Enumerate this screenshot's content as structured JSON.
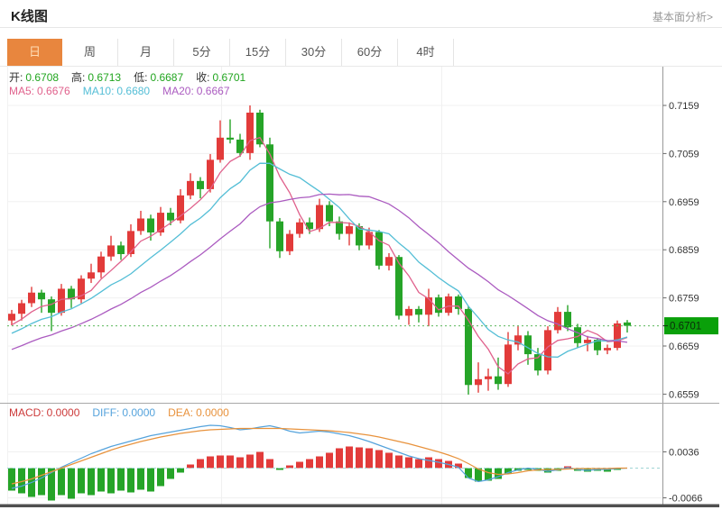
{
  "header": {
    "title": "K线图",
    "link": "基本面分析>"
  },
  "tabs": {
    "items": [
      {
        "label": "日",
        "active": true
      },
      {
        "label": "周",
        "active": false
      },
      {
        "label": "月",
        "active": false
      },
      {
        "label": "5分",
        "active": false
      },
      {
        "label": "15分",
        "active": false
      },
      {
        "label": "30分",
        "active": false
      },
      {
        "label": "60分",
        "active": false
      },
      {
        "label": "4时",
        "active": false
      }
    ]
  },
  "ohlc": {
    "open_label": "开:",
    "open": "0.6708",
    "high_label": "高:",
    "high": "0.6713",
    "low_label": "低:",
    "low": "0.6687",
    "close_label": "收:",
    "close": "0.6701"
  },
  "ma": {
    "ma5_label": "MA5:",
    "ma5": "0.6676",
    "ma10_label": "MA10:",
    "ma10": "0.6680",
    "ma20_label": "MA20:",
    "ma20": "0.6667"
  },
  "macd_row": {
    "macd_label": "MACD:",
    "macd": "0.0000",
    "diff_label": "DIFF:",
    "diff": "0.0000",
    "dea_label": "DEA:",
    "dea": "0.0000"
  },
  "colors": {
    "up": "#e23b3a",
    "down": "#26a428",
    "ma5": "#e0618c",
    "ma10": "#54bed6",
    "ma20": "#ab5bc0",
    "diff": "#55a3dc",
    "dea": "#e8923c",
    "price_line": "#5bb85b",
    "price_tag_bg": "#0aa00a",
    "price_tag_text": "#0b2b0b",
    "grid": "#f0f0f0",
    "axis": "#999999",
    "tick_text": "#333333",
    "macd_zero": "#9fd4d4",
    "separator": "#a8a8a8",
    "bottom_bar": "#505050",
    "accent_tab": "#e8863e"
  },
  "chart_data": {
    "type": "candlestick",
    "title": "K线图",
    "y_axis": {
      "labels": [
        "0.7159",
        "0.7059",
        "0.6959",
        "0.6859",
        "0.6759",
        "0.6659",
        "0.6559"
      ],
      "top_value": 0.7159,
      "step": 0.01
    },
    "current_price": {
      "label": "0.6701",
      "price": 0.6701
    },
    "candles": [
      [
        0.6712,
        0.6734,
        0.6702,
        0.6726
      ],
      [
        0.6726,
        0.6755,
        0.6712,
        0.6748
      ],
      [
        0.6748,
        0.6782,
        0.674,
        0.677
      ],
      [
        0.677,
        0.6776,
        0.6728,
        0.6756
      ],
      [
        0.6756,
        0.6762,
        0.669,
        0.6728
      ],
      [
        0.6728,
        0.6788,
        0.6722,
        0.6778
      ],
      [
        0.6778,
        0.6784,
        0.6738,
        0.6756
      ],
      [
        0.6756,
        0.6806,
        0.6748,
        0.6799
      ],
      [
        0.6799,
        0.683,
        0.679,
        0.6812
      ],
      [
        0.6812,
        0.6855,
        0.68,
        0.6845
      ],
      [
        0.6845,
        0.6888,
        0.6836,
        0.6868
      ],
      [
        0.6868,
        0.6876,
        0.6838,
        0.685
      ],
      [
        0.685,
        0.6912,
        0.6844,
        0.6898
      ],
      [
        0.6898,
        0.694,
        0.689,
        0.6924
      ],
      [
        0.6924,
        0.6932,
        0.6878,
        0.6895
      ],
      [
        0.6895,
        0.6948,
        0.6888,
        0.6936
      ],
      [
        0.6936,
        0.6946,
        0.691,
        0.692
      ],
      [
        0.692,
        0.6985,
        0.6914,
        0.6972
      ],
      [
        0.6972,
        0.7018,
        0.6964,
        0.7002
      ],
      [
        0.7002,
        0.701,
        0.6966,
        0.6985
      ],
      [
        0.6985,
        0.7058,
        0.6978,
        0.7046
      ],
      [
        0.7046,
        0.7128,
        0.704,
        0.7092
      ],
      [
        0.7092,
        0.713,
        0.708,
        0.7088
      ],
      [
        0.7088,
        0.71,
        0.7052,
        0.706
      ],
      [
        0.706,
        0.7159,
        0.7046,
        0.7144
      ],
      [
        0.7144,
        0.715,
        0.7072,
        0.7078
      ],
      [
        0.7078,
        0.7092,
        0.6862,
        0.6918
      ],
      [
        0.6918,
        0.6925,
        0.6842,
        0.6856
      ],
      [
        0.6856,
        0.69,
        0.6848,
        0.6892
      ],
      [
        0.6892,
        0.6924,
        0.6884,
        0.6916
      ],
      [
        0.6916,
        0.6926,
        0.6892,
        0.6902
      ],
      [
        0.6902,
        0.6965,
        0.6896,
        0.6952
      ],
      [
        0.6952,
        0.696,
        0.6908,
        0.6918
      ],
      [
        0.6918,
        0.6928,
        0.688,
        0.6892
      ],
      [
        0.6892,
        0.6916,
        0.6868,
        0.6908
      ],
      [
        0.6908,
        0.6914,
        0.6858,
        0.6868
      ],
      [
        0.6868,
        0.6905,
        0.686,
        0.6896
      ],
      [
        0.6896,
        0.69,
        0.6818,
        0.6826
      ],
      [
        0.6826,
        0.6852,
        0.6816,
        0.6844
      ],
      [
        0.6844,
        0.6848,
        0.6714,
        0.6722
      ],
      [
        0.6722,
        0.6742,
        0.6703,
        0.6736
      ],
      [
        0.6736,
        0.6742,
        0.6708,
        0.6724
      ],
      [
        0.6724,
        0.6778,
        0.67,
        0.676
      ],
      [
        0.676,
        0.6766,
        0.672,
        0.6728
      ],
      [
        0.6728,
        0.6768,
        0.6722,
        0.6762
      ],
      [
        0.6762,
        0.6766,
        0.6724,
        0.6736
      ],
      [
        0.6736,
        0.6742,
        0.6558,
        0.6578
      ],
      [
        0.6578,
        0.6625,
        0.6562,
        0.659
      ],
      [
        0.659,
        0.6612,
        0.6566,
        0.6596
      ],
      [
        0.6596,
        0.6635,
        0.6568,
        0.658
      ],
      [
        0.658,
        0.6688,
        0.6574,
        0.6662
      ],
      [
        0.6662,
        0.67,
        0.665,
        0.6681
      ],
      [
        0.6681,
        0.669,
        0.662,
        0.6642
      ],
      [
        0.6642,
        0.6655,
        0.6598,
        0.6608
      ],
      [
        0.6608,
        0.67,
        0.66,
        0.6692
      ],
      [
        0.6692,
        0.674,
        0.6685,
        0.673
      ],
      [
        0.673,
        0.6744,
        0.669,
        0.6698
      ],
      [
        0.6698,
        0.6705,
        0.6655,
        0.6665
      ],
      [
        0.6665,
        0.668,
        0.6648,
        0.6672
      ],
      [
        0.6672,
        0.6676,
        0.664,
        0.665
      ],
      [
        0.665,
        0.6662,
        0.6642,
        0.6655
      ],
      [
        0.6655,
        0.6712,
        0.665,
        0.6706
      ],
      [
        0.6708,
        0.6713,
        0.6687,
        0.6701
      ]
    ],
    "ma_seed_closes": [
      0.6588,
      0.6592,
      0.6597,
      0.6603,
      0.6609,
      0.6615,
      0.6621,
      0.6627,
      0.6633,
      0.664,
      0.6647,
      0.6654,
      0.6661,
      0.6668,
      0.6675,
      0.6682,
      0.6688,
      0.6694,
      0.67,
      0.6706
    ],
    "macd": {
      "y_axis_labels": [
        "0.0036",
        "-0.0066"
      ],
      "y_axis_values": [
        0.0036,
        -0.0066
      ],
      "hist": [
        -0.005,
        -0.0056,
        -0.0064,
        -0.006,
        -0.0072,
        -0.006,
        -0.0068,
        -0.0056,
        -0.006,
        -0.0052,
        -0.0056,
        -0.005,
        -0.0054,
        -0.0048,
        -0.0052,
        -0.004,
        -0.0024,
        -0.001,
        0.0008,
        0.002,
        0.0026,
        0.0028,
        0.0028,
        0.0024,
        0.003,
        0.0036,
        0.002,
        -0.0004,
        0.0006,
        0.0014,
        0.002,
        0.0026,
        0.0034,
        0.0044,
        0.0048,
        0.0046,
        0.0044,
        0.004,
        0.0034,
        0.0028,
        0.0024,
        0.002,
        0.0024,
        0.002,
        0.0016,
        0.001,
        -0.0022,
        -0.003,
        -0.0028,
        -0.0024,
        -0.0012,
        -0.0006,
        -0.0004,
        -0.0006,
        -0.001,
        -0.0006,
        0.0004,
        -0.0006,
        -0.0008,
        -0.0006,
        -0.0008,
        -0.0004,
        0.0
      ],
      "diff": [
        -0.0045,
        -0.004,
        -0.0032,
        -0.0022,
        -0.001,
        0.0002,
        0.0012,
        0.0022,
        0.0032,
        0.004,
        0.0048,
        0.0054,
        0.006,
        0.0066,
        0.0072,
        0.0076,
        0.008,
        0.0084,
        0.0088,
        0.0092,
        0.0095,
        0.0094,
        0.009,
        0.0085,
        0.0087,
        0.0091,
        0.0094,
        0.0089,
        0.0082,
        0.0078,
        0.008,
        0.0082,
        0.008,
        0.0076,
        0.0072,
        0.0066,
        0.0059,
        0.0051,
        0.0043,
        0.0035,
        0.0027,
        0.0021,
        0.0017,
        0.0013,
        0.0008,
        0.0002,
        -0.0022,
        -0.003,
        -0.0026,
        -0.0019,
        -0.001,
        -0.0004,
        0.0,
        -0.0003,
        -0.0007,
        -0.0004,
        0.0001,
        -0.0003,
        -0.0005,
        -0.0003,
        -0.0003,
        -0.0001,
        0.0
      ],
      "dea": [
        -0.0035,
        -0.003,
        -0.0024,
        -0.0016,
        -0.0008,
        0.0,
        0.0008,
        0.0016,
        0.0024,
        0.0032,
        0.004,
        0.0047,
        0.0053,
        0.0059,
        0.0064,
        0.0069,
        0.0073,
        0.0077,
        0.008,
        0.0083,
        0.0085,
        0.0086,
        0.0087,
        0.0088,
        0.0088,
        0.0088,
        0.0088,
        0.0088,
        0.0087,
        0.0086,
        0.0085,
        0.0084,
        0.0083,
        0.0081,
        0.0079,
        0.0076,
        0.0073,
        0.0069,
        0.0064,
        0.0059,
        0.0054,
        0.0048,
        0.0042,
        0.0036,
        0.0029,
        0.0021,
        0.001,
        -0.0002,
        -0.001,
        -0.0014,
        -0.0013,
        -0.001,
        -0.0006,
        -0.0004,
        -0.0003,
        -0.0003,
        -0.0002,
        -0.0001,
        -0.0001,
        -0.0001,
        -0.0001,
        0.0,
        0.0
      ]
    }
  }
}
